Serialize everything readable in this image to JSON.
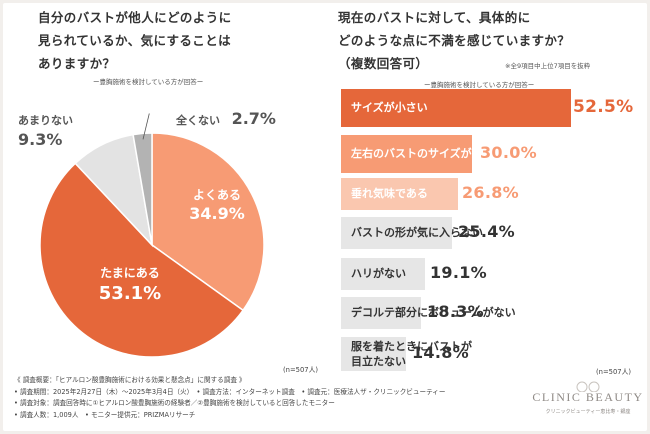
{
  "left": {
    "title_lines": [
      "自分のバストが他人にどのように",
      "見られているか、気にすることは",
      "ありますか？"
    ],
    "subtitle": "ー豊胸施術を検討している方が回答ー",
    "n_note": "(n=507人)"
  },
  "right": {
    "title_lines": [
      "現在のバストに対して、具体的に",
      "どのような点に不満を感じていますか？",
      "（複数回答可）"
    ],
    "top_note": "※全9項目中上位7項目を抜粋",
    "subtitle": "ー豊胸施術を検討している方が回答ー",
    "n_note": "(n=507人)"
  },
  "footer": {
    "lines": [
      "《 調査概要：「ヒアルロン酸豊胸施術における効果と懸念点」に関する調査 》",
      "• 調査期間：2025年2月27日（木）〜2025年3月4日（火）　• 調査方法：インターネット調査　• 調査元：医療法人ザ・クリニックビューティー",
      "• 調査対象：調査回答時に①ヒアルロン酸豊胸施術の経験者／②豊胸施術を検討していると回答したモニター",
      "• 調査人数：1,009人　• モニター提供元：PRIZMAリサーチ"
    ]
  },
  "logo": {
    "name": "CLINIC BEAUTY",
    "tagline": "クリニックビューティー恵比寿・銀座"
  },
  "colors": {
    "dark_orange": "#e5673a",
    "light_orange": "#f79b74",
    "pale_orange": "#fac7af",
    "gray_light": "#e6e6e6",
    "gray_mid": "#bdbdbd",
    "gray_dark": "#9a9a9a",
    "pie_gray1": "#e3e3e3",
    "pie_gray2": "#b3b3b3"
  },
  "chart_data": [
    {
      "type": "pie",
      "slices": [
        {
          "label": "よくある",
          "value": 34.9,
          "display": "34.9%"
        },
        {
          "label": "たまにある",
          "value": 53.1,
          "display": "53.1%"
        },
        {
          "label": "あまりない",
          "value": 9.3,
          "display": "9.3%"
        },
        {
          "label": "全くない",
          "value": 2.7,
          "display": "2.7%"
        }
      ]
    },
    {
      "type": "bar",
      "orientation": "horizontal",
      "categories": [
        "サイズが小さい",
        "左右のバストのサイズが異なる",
        "垂れ気味である",
        "バストの形が気に入らない",
        "ハリがない",
        "デコルテ部分にボリュームがない",
        "服を着たときにバストが目立たない"
      ],
      "values": [
        52.5,
        30.0,
        26.8,
        25.4,
        19.1,
        18.3,
        14.8
      ],
      "value_labels": [
        "52.5%",
        "30.0%",
        "26.8%",
        "25.4%",
        "19.1%",
        "18.3%",
        "14.8%"
      ]
    }
  ]
}
